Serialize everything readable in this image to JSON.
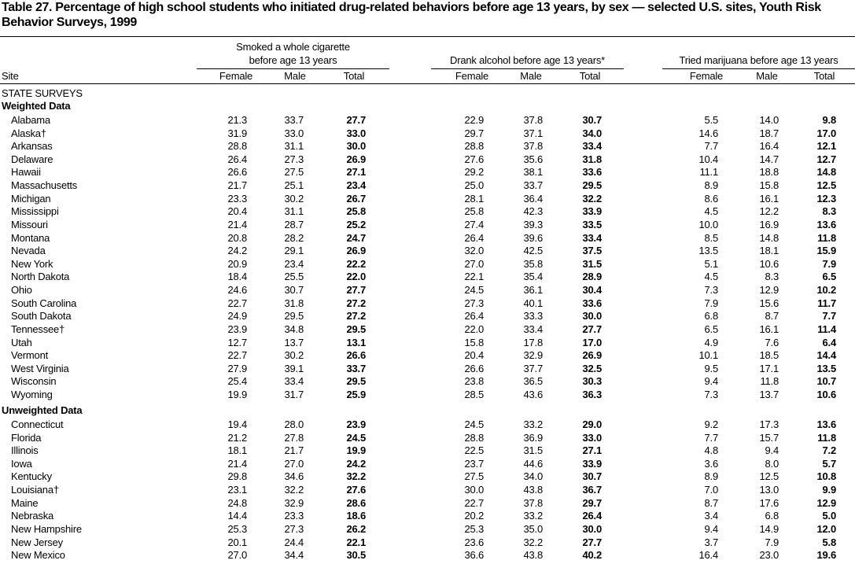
{
  "header": {
    "title": "Table 27. Percentage of high school students who initiated drug-related behaviors before age 13 years, by sex — selected U.S. sites, Youth Risk Behavior Surveys, 1999"
  },
  "table": {
    "site_header": "Site",
    "column_groups": [
      {
        "label_lines": [
          "Smoked a whole cigarette",
          "before age 13 years"
        ],
        "columns": [
          "Female",
          "Male",
          "Total"
        ]
      },
      {
        "label_lines": [
          "Drank alcohol before age 13 years*"
        ],
        "columns": [
          "Female",
          "Male",
          "Total"
        ]
      },
      {
        "label_lines": [
          "Tried marijuana before age 13 years"
        ],
        "columns": [
          "Female",
          "Male",
          "Total"
        ]
      }
    ],
    "section_title": "STATE SURVEYS",
    "groups": [
      {
        "label": "Weighted Data",
        "rows": [
          [
            "Alabama",
            "21.3",
            "33.7",
            "27.7",
            "22.9",
            "37.8",
            "30.7",
            "5.5",
            "14.0",
            "9.8"
          ],
          [
            "Alaska†",
            "31.9",
            "33.0",
            "33.0",
            "29.7",
            "37.1",
            "34.0",
            "14.6",
            "18.7",
            "17.0"
          ],
          [
            "Arkansas",
            "28.8",
            "31.1",
            "30.0",
            "28.8",
            "37.8",
            "33.4",
            "7.7",
            "16.4",
            "12.1"
          ],
          [
            "Delaware",
            "26.4",
            "27.3",
            "26.9",
            "27.6",
            "35.6",
            "31.8",
            "10.4",
            "14.7",
            "12.7"
          ],
          [
            "Hawaii",
            "26.6",
            "27.5",
            "27.1",
            "29.2",
            "38.1",
            "33.6",
            "11.1",
            "18.8",
            "14.8"
          ],
          [
            "Massachusetts",
            "21.7",
            "25.1",
            "23.4",
            "25.0",
            "33.7",
            "29.5",
            "8.9",
            "15.8",
            "12.5"
          ],
          [
            "Michigan",
            "23.3",
            "30.2",
            "26.7",
            "28.1",
            "36.4",
            "32.2",
            "8.6",
            "16.1",
            "12.3"
          ],
          [
            "Mississippi",
            "20.4",
            "31.1",
            "25.8",
            "25.8",
            "42.3",
            "33.9",
            "4.5",
            "12.2",
            "8.3"
          ],
          [
            "Missouri",
            "21.4",
            "28.7",
            "25.2",
            "27.4",
            "39.3",
            "33.5",
            "10.0",
            "16.9",
            "13.6"
          ],
          [
            "Montana",
            "20.8",
            "28.2",
            "24.7",
            "26.4",
            "39.6",
            "33.4",
            "8.5",
            "14.8",
            "11.8"
          ],
          [
            "Nevada",
            "24.2",
            "29.1",
            "26.9",
            "32.0",
            "42.5",
            "37.5",
            "13.5",
            "18.1",
            "15.9"
          ],
          [
            "New York",
            "20.9",
            "23.4",
            "22.2",
            "27.0",
            "35.8",
            "31.5",
            "5.1",
            "10.6",
            "7.9"
          ],
          [
            "North Dakota",
            "18.4",
            "25.5",
            "22.0",
            "22.1",
            "35.4",
            "28.9",
            "4.5",
            "8.3",
            "6.5"
          ],
          [
            "Ohio",
            "24.6",
            "30.7",
            "27.7",
            "24.5",
            "36.1",
            "30.4",
            "7.3",
            "12.9",
            "10.2"
          ],
          [
            "South Carolina",
            "22.7",
            "31.8",
            "27.2",
            "27.3",
            "40.1",
            "33.6",
            "7.9",
            "15.6",
            "11.7"
          ],
          [
            "South Dakota",
            "24.9",
            "29.5",
            "27.2",
            "26.4",
            "33.3",
            "30.0",
            "6.8",
            "8.7",
            "7.7"
          ],
          [
            "Tennessee†",
            "23.9",
            "34.8",
            "29.5",
            "22.0",
            "33.4",
            "27.7",
            "6.5",
            "16.1",
            "11.4"
          ],
          [
            "Utah",
            "12.7",
            "13.7",
            "13.1",
            "15.8",
            "17.8",
            "17.0",
            "4.9",
            "7.6",
            "6.4"
          ],
          [
            "Vermont",
            "22.7",
            "30.2",
            "26.6",
            "20.4",
            "32.9",
            "26.9",
            "10.1",
            "18.5",
            "14.4"
          ],
          [
            "West Virginia",
            "27.9",
            "39.1",
            "33.7",
            "26.6",
            "37.7",
            "32.5",
            "9.5",
            "17.1",
            "13.5"
          ],
          [
            "Wisconsin",
            "25.4",
            "33.4",
            "29.5",
            "23.8",
            "36.5",
            "30.3",
            "9.4",
            "11.8",
            "10.7"
          ],
          [
            "Wyoming",
            "19.9",
            "31.7",
            "25.9",
            "28.5",
            "43.6",
            "36.3",
            "7.3",
            "13.7",
            "10.6"
          ]
        ]
      },
      {
        "label": "Unweighted Data",
        "rows": [
          [
            "Connecticut",
            "19.4",
            "28.0",
            "23.9",
            "24.5",
            "33.2",
            "29.0",
            "9.2",
            "17.3",
            "13.6"
          ],
          [
            "Florida",
            "21.2",
            "27.8",
            "24.5",
            "28.8",
            "36.9",
            "33.0",
            "7.7",
            "15.7",
            "11.8"
          ],
          [
            "Illinois",
            "18.1",
            "21.7",
            "19.9",
            "22.5",
            "31.5",
            "27.1",
            "4.8",
            "9.4",
            "7.2"
          ],
          [
            "Iowa",
            "21.4",
            "27.0",
            "24.2",
            "23.7",
            "44.6",
            "33.9",
            "3.6",
            "8.0",
            "5.7"
          ],
          [
            "Kentucky",
            "29.8",
            "34.6",
            "32.2",
            "27.5",
            "34.0",
            "30.7",
            "8.9",
            "12.5",
            "10.8"
          ],
          [
            "Louisiana†",
            "23.1",
            "32.2",
            "27.6",
            "30.0",
            "43.8",
            "36.7",
            "7.0",
            "13.0",
            "9.9"
          ],
          [
            "Maine",
            "24.8",
            "32.9",
            "28.6",
            "22.7",
            "37.8",
            "29.7",
            "8.7",
            "17.6",
            "12.9"
          ],
          [
            "Nebraska",
            "14.4",
            "23.3",
            "18.6",
            "20.2",
            "33.2",
            "26.4",
            "3.4",
            "6.8",
            "5.0"
          ],
          [
            "New Hampshire",
            "25.3",
            "27.3",
            "26.2",
            "25.3",
            "35.0",
            "30.0",
            "9.4",
            "14.9",
            "12.0"
          ],
          [
            "New Jersey",
            "20.1",
            "24.4",
            "22.1",
            "23.6",
            "32.2",
            "27.7",
            "3.7",
            "7.9",
            "5.8"
          ],
          [
            "New Mexico",
            "27.0",
            "34.4",
            "30.5",
            "36.6",
            "43.8",
            "40.2",
            "16.4",
            "23.0",
            "19.6"
          ]
        ]
      }
    ]
  }
}
